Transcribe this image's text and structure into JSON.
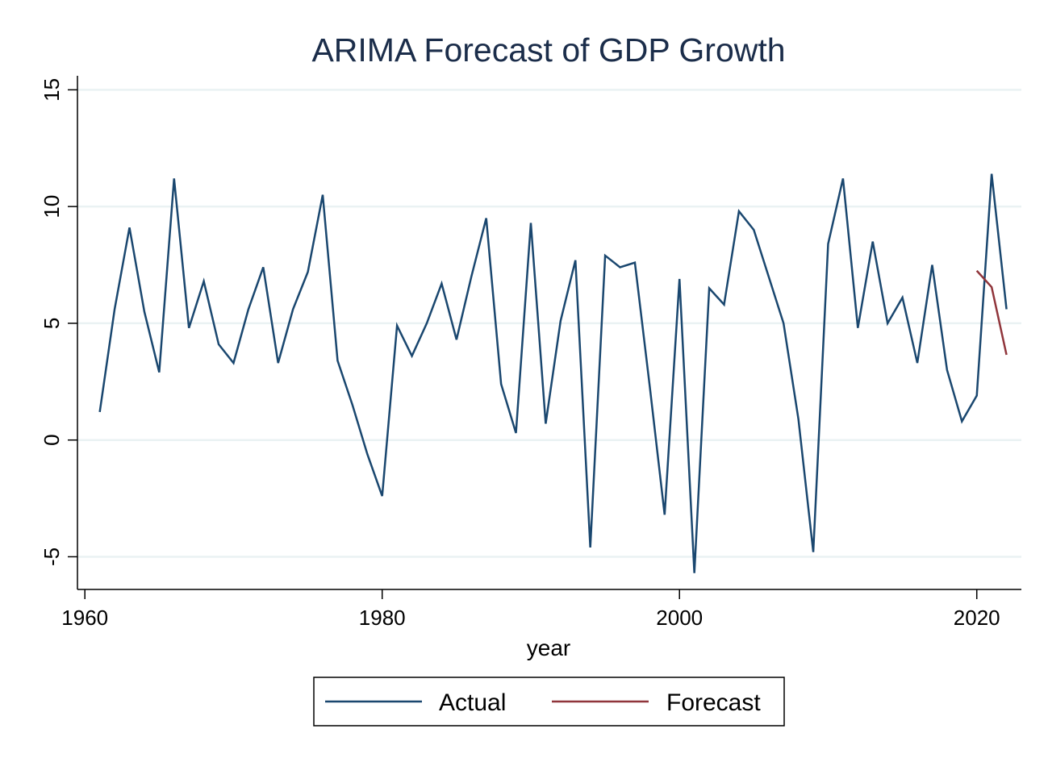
{
  "chart_data": {
    "type": "line",
    "title": "ARIMA Forecast of GDP Growth",
    "xlabel": "year",
    "ylabel": "",
    "xlim": [
      1959.5,
      2023
    ],
    "ylim": [
      -6.4,
      15.6
    ],
    "x_ticks": [
      1960,
      1980,
      2000,
      2020
    ],
    "y_ticks": [
      -5,
      0,
      5,
      10,
      15
    ],
    "grid": true,
    "legend_position": "bottom",
    "series": [
      {
        "name": "Actual",
        "color": "#1a476f",
        "x": [
          1961,
          1962,
          1963,
          1964,
          1965,
          1966,
          1967,
          1968,
          1969,
          1970,
          1971,
          1972,
          1973,
          1974,
          1975,
          1976,
          1977,
          1978,
          1979,
          1980,
          1981,
          1982,
          1983,
          1984,
          1985,
          1986,
          1987,
          1988,
          1989,
          1990,
          1991,
          1992,
          1993,
          1994,
          1995,
          1996,
          1997,
          1998,
          1999,
          2000,
          2001,
          2002,
          2003,
          2004,
          2005,
          2006,
          2007,
          2008,
          2009,
          2010,
          2011,
          2012,
          2013,
          2014,
          2015,
          2016,
          2017,
          2018,
          2019,
          2020,
          2021,
          2022
        ],
        "values": [
          1.2,
          5.6,
          9.1,
          5.5,
          2.9,
          11.2,
          4.8,
          6.8,
          4.1,
          3.3,
          5.6,
          7.4,
          3.3,
          5.6,
          7.2,
          10.5,
          3.4,
          1.5,
          -0.6,
          -2.4,
          4.9,
          3.6,
          5.0,
          6.7,
          4.3,
          7.0,
          9.5,
          2.4,
          0.3,
          9.3,
          0.7,
          5.1,
          7.7,
          -4.6,
          7.9,
          7.4,
          7.6,
          2.3,
          -3.2,
          6.9,
          -5.7,
          6.5,
          5.8,
          9.8,
          9.0,
          7.0,
          5.0,
          0.9,
          -4.8,
          8.4,
          11.2,
          4.8,
          8.5,
          5.0,
          6.1,
          3.3,
          7.5,
          3.0,
          0.8,
          1.9,
          11.4,
          5.6
        ]
      },
      {
        "name": "Forecast",
        "color": "#90353b",
        "x": [
          2020,
          2021,
          2022
        ],
        "values": [
          7.25,
          6.55,
          3.65
        ]
      }
    ]
  }
}
